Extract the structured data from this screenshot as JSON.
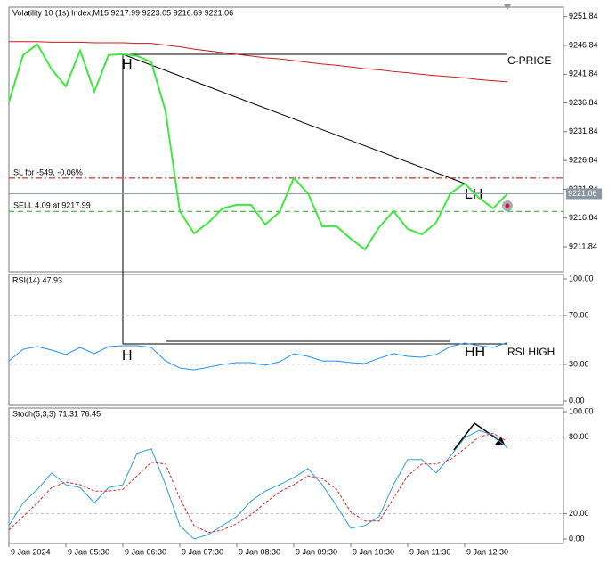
{
  "chart_data": [
    {
      "type": "line",
      "title": "Volatility 10 (1s) Index,M15  9217.99 9223.05 9216.69 9221.06",
      "ylim": [
        9207.5,
        9253.5
      ],
      "yticks": [
        9251.84,
        9246.84,
        9241.84,
        9236.84,
        9231.84,
        9226.84,
        9221.84,
        9216.84,
        9211.84
      ],
      "series": [
        {
          "color": "#3ee83e",
          "values": [
            9236.96,
            9245.17,
            9247.03,
            9242.69,
            9239.75,
            9245.95,
            9238.82,
            9245.17,
            9245.33,
            9245.02,
            9243.93,
            9235.41,
            9218.04,
            9214.17,
            9216.03,
            9218.51,
            9219.13,
            9219.13,
            9215.72,
            9217.89,
            9223.78,
            9221.14,
            9215.41,
            9215.41,
            9213.24,
            9211.37,
            9215.25,
            9218.04,
            9214.94,
            9214.01,
            9216.03,
            9221.14,
            9222.85,
            9220.37,
            9218.51,
            9221.06
          ]
        },
        {
          "color": "#d01818",
          "values": [
            9247.5,
            9247.5,
            9247.5,
            9247.4,
            9247.4,
            9247.4,
            9247.3,
            9247.3,
            9247.3,
            9247.2,
            9247.2,
            9246.9,
            9246.6,
            9246.2,
            9245.9,
            9245.6,
            9245.3,
            9245.0,
            9244.7,
            9244.5,
            9244.2,
            9243.9,
            9243.6,
            9243.4,
            9243.1,
            9242.8,
            9242.6,
            9242.3,
            9242.1,
            9241.8,
            9241.6,
            9241.4,
            9241.2,
            9240.9,
            9240.7,
            9240.5
          ]
        }
      ],
      "hlines": [
        {
          "label": "SL for -549, -0.06%",
          "value": 9223.78,
          "color": "#c00000"
        },
        {
          "label": "SELL 4.09 at 9217.99",
          "value": 9217.99,
          "color": "#20a820"
        }
      ],
      "current_price": 9221.06,
      "annotations": [
        "H",
        "LH",
        "C-PRICE"
      ]
    },
    {
      "type": "line",
      "title": "RSI(14) 47.93",
      "ylim": [
        -3.6,
        103.6
      ],
      "yticks": [
        {
          "value": 100,
          "label": "100.00"
        },
        {
          "value": 70,
          "label": "70.00"
        },
        {
          "value": 30,
          "label": "30.00"
        },
        {
          "value": 0,
          "label": "0.00"
        }
      ],
      "series": [
        {
          "color": "#1e90ff",
          "values": [
            32.8,
            42.3,
            44.5,
            41.6,
            38.0,
            43.8,
            38.7,
            44.5,
            45.3,
            45.3,
            43.8,
            32.8,
            27.0,
            25.5,
            27.7,
            29.9,
            31.4,
            31.4,
            29.2,
            32.1,
            38.7,
            36.5,
            32.8,
            32.8,
            31.4,
            30.7,
            35.0,
            38.7,
            36.5,
            35.8,
            38.0,
            44.5,
            47.4,
            45.3,
            43.8,
            47.93
          ]
        }
      ],
      "annotations": [
        "H",
        "HH",
        "RSI HIGH"
      ]
    },
    {
      "type": "line",
      "title": "Stoch(5,3,3) 71.31 76.45",
      "ylim": [
        -3.5,
        102.8
      ],
      "yticks": [
        {
          "value": 100,
          "label": "100.00"
        },
        {
          "value": 80,
          "label": "80.00"
        },
        {
          "value": 20,
          "label": "20.00"
        },
        {
          "value": 0,
          "label": "0.00"
        }
      ],
      "categories": [
        "9 Jan 2024",
        null,
        null,
        null,
        "9 Jan 05:30",
        null,
        null,
        null,
        "9 Jan 06:30",
        null,
        null,
        null,
        "9 Jan 07:30",
        null,
        null,
        null,
        "9 Jan 08:30",
        null,
        null,
        null,
        "9 Jan 09:30",
        null,
        null,
        null,
        "9 Jan 10:30",
        null,
        null,
        null,
        "9 Jan 11:30",
        null,
        null,
        null,
        "9 Jan 12:30",
        null,
        null,
        null
      ],
      "series": [
        {
          "color": "#2aa0d8",
          "values": [
            10.6,
            28.4,
            39.0,
            51.8,
            42.6,
            40.4,
            28.4,
            40.4,
            42.6,
            67.4,
            70.9,
            42.6,
            10.6,
            0,
            3.5,
            10.6,
            17.7,
            29.8,
            37.6,
            42.6,
            48.2,
            55.3,
            42.6,
            26.2,
            8.5,
            10.6,
            17.7,
            42.6,
            62.4,
            62.4,
            51.8,
            65.2,
            79.4,
            85.1,
            81.6,
            71.31
          ]
        },
        {
          "color": "#e02020",
          "dash": true,
          "values": [
            7.1,
            17.7,
            28.4,
            40.4,
            44.7,
            42.6,
            37.6,
            37.6,
            39.0,
            49.6,
            60.3,
            58.9,
            31.9,
            10.6,
            5.0,
            7.1,
            12.1,
            19.1,
            28.4,
            36.9,
            42.6,
            49.6,
            47.5,
            39.0,
            21.3,
            14.2,
            14.2,
            31.9,
            49.6,
            58.9,
            58.9,
            62.4,
            70.9,
            80.1,
            83.0,
            76.45
          ]
        }
      ]
    }
  ]
}
